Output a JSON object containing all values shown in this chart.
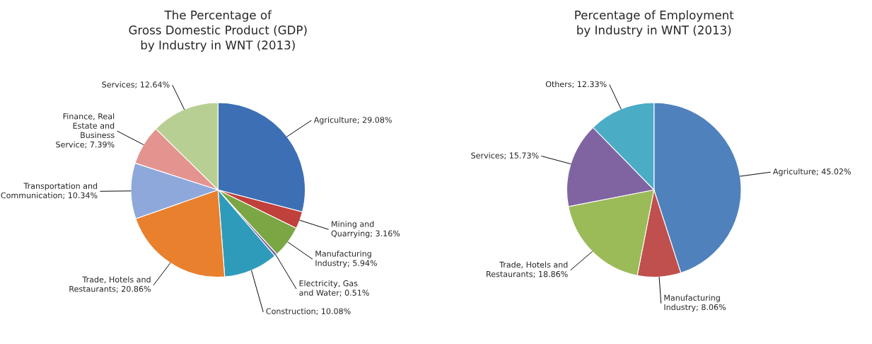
{
  "chart_data": [
    {
      "type": "pie",
      "title": "The Percentage of\nGross Domestic Product (GDP)\nby Industry in WNT (2013)",
      "categories": [
        "Agriculture",
        "Mining and Quarrying",
        "Manufacturing Industry",
        "Electricity, Gas and Water",
        "Construction",
        "Trade, Hotels and Restaurants",
        "Transportation and Communication",
        "Finance, Real Estate and Business Service",
        "Services"
      ],
      "values": [
        29.08,
        3.16,
        5.94,
        0.51,
        10.08,
        20.86,
        10.34,
        7.39,
        12.64
      ],
      "value_labels": [
        "29.08%",
        "3.16%",
        "5.94%",
        "0.51%",
        "10.08%",
        "20.86%",
        "10.34%",
        "7.39%",
        "12.64%"
      ],
      "colors": [
        "#3d6fb5",
        "#c0403c",
        "#7ba644",
        "#7e62a3",
        "#2f9bbb",
        "#e8802e",
        "#8ea8dc",
        "#e3948f",
        "#b8cf93"
      ],
      "legend": false
    },
    {
      "type": "pie",
      "title": "Percentage of Employment\nby Industry in WNT (2013)",
      "categories": [
        "Agriculture",
        "Manufacturing Industry",
        "Trade, Hotels and Restaurants",
        "Services",
        "Others"
      ],
      "values": [
        45.02,
        8.06,
        18.86,
        15.73,
        12.33
      ],
      "value_labels": [
        "45.02%",
        "8.06%",
        "18.86%",
        "15.73%",
        "12.33%"
      ],
      "colors": [
        "#4f81bd",
        "#c0504d",
        "#9bbb59",
        "#8064a2",
        "#4bacc6"
      ],
      "legend": false
    }
  ]
}
